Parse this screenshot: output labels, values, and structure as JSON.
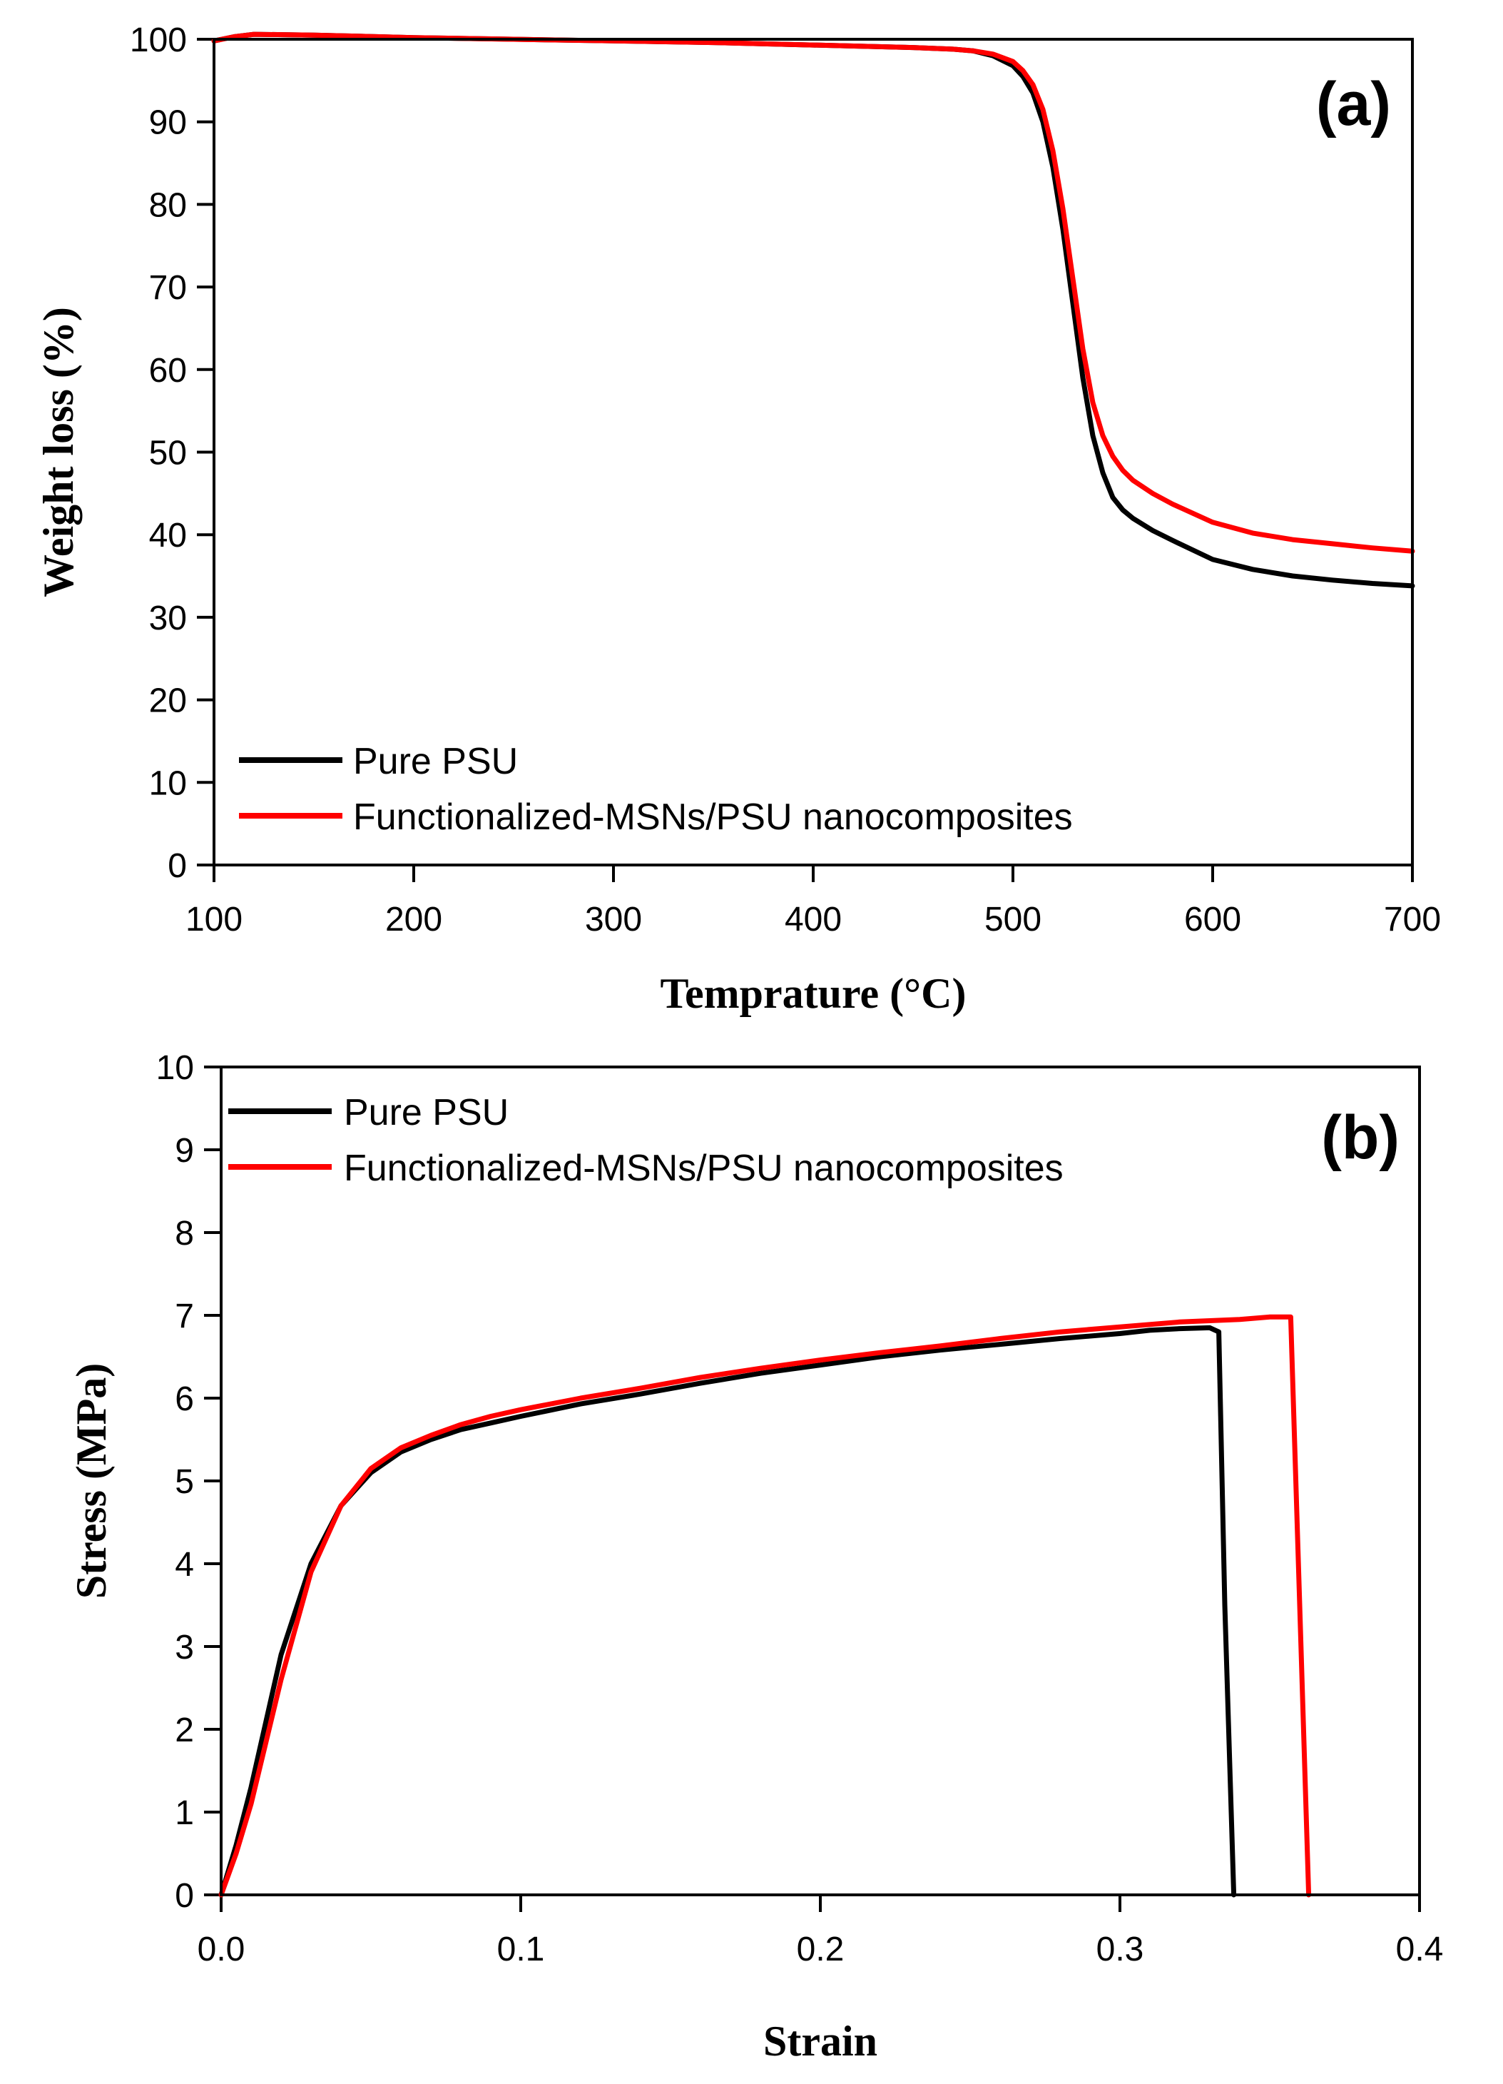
{
  "chart_data": [
    {
      "type": "line",
      "panel_label": "(a)",
      "xlabel": "Temprature (°C)",
      "ylabel": "Weight loss (%)",
      "xlim": [
        100,
        700
      ],
      "ylim": [
        0,
        100
      ],
      "xticks": [
        100,
        200,
        300,
        400,
        500,
        600,
        700
      ],
      "yticks": [
        0,
        10,
        20,
        30,
        40,
        50,
        60,
        70,
        80,
        90,
        100
      ],
      "grid": false,
      "legend_position": "bottom-left",
      "series": [
        {
          "name": "Pure PSU",
          "color": "#000000",
          "x": [
            100,
            110,
            120,
            150,
            200,
            250,
            300,
            350,
            400,
            450,
            470,
            480,
            490,
            500,
            505,
            510,
            515,
            520,
            525,
            530,
            535,
            540,
            545,
            550,
            555,
            560,
            570,
            580,
            600,
            620,
            640,
            660,
            680,
            700
          ],
          "y": [
            99.8,
            100.3,
            100.6,
            100.5,
            100.2,
            100.0,
            99.8,
            99.6,
            99.3,
            99.0,
            98.8,
            98.6,
            98.0,
            96.8,
            95.5,
            93.5,
            90.0,
            84.5,
            77.0,
            68.0,
            59.0,
            52.0,
            47.5,
            44.5,
            43.0,
            42.0,
            40.5,
            39.3,
            37.0,
            35.8,
            35.0,
            34.5,
            34.1,
            33.8
          ]
        },
        {
          "name": "Functionalized-MSNs/PSU nanocomposites",
          "color": "#ff0000",
          "x": [
            100,
            110,
            120,
            150,
            200,
            250,
            300,
            350,
            400,
            450,
            470,
            480,
            490,
            500,
            505,
            510,
            515,
            520,
            525,
            530,
            535,
            540,
            545,
            550,
            555,
            560,
            570,
            580,
            600,
            620,
            640,
            660,
            680,
            700
          ],
          "y": [
            99.8,
            100.3,
            100.6,
            100.5,
            100.2,
            100.0,
            99.8,
            99.6,
            99.3,
            99.0,
            98.8,
            98.6,
            98.2,
            97.3,
            96.2,
            94.5,
            91.5,
            86.5,
            79.5,
            71.0,
            62.5,
            56.0,
            52.0,
            49.5,
            47.8,
            46.6,
            45.0,
            43.7,
            41.5,
            40.2,
            39.4,
            38.9,
            38.4,
            38.0
          ]
        }
      ]
    },
    {
      "type": "line",
      "panel_label": "(b)",
      "xlabel": "Strain",
      "ylabel": "Stress (MPa)",
      "xlim": [
        0.0,
        0.4
      ],
      "ylim": [
        0,
        10
      ],
      "xticks": [
        "0.0",
        "0.1",
        "0.2",
        "0.3",
        "0.4"
      ],
      "yticks": [
        0,
        1,
        2,
        3,
        4,
        5,
        6,
        7,
        8,
        9,
        10
      ],
      "grid": false,
      "legend_position": "top-left",
      "series": [
        {
          "name": "Pure PSU",
          "color": "#000000",
          "x": [
            0.0,
            0.005,
            0.01,
            0.02,
            0.03,
            0.04,
            0.05,
            0.06,
            0.07,
            0.08,
            0.09,
            0.1,
            0.12,
            0.14,
            0.16,
            0.18,
            0.2,
            0.22,
            0.24,
            0.26,
            0.28,
            0.3,
            0.31,
            0.32,
            0.33,
            0.333,
            0.335,
            0.338
          ],
          "y": [
            0.0,
            0.6,
            1.3,
            2.9,
            4.0,
            4.7,
            5.1,
            5.35,
            5.5,
            5.62,
            5.7,
            5.78,
            5.93,
            6.05,
            6.18,
            6.3,
            6.4,
            6.5,
            6.58,
            6.65,
            6.72,
            6.78,
            6.82,
            6.84,
            6.85,
            6.8,
            3.5,
            0.0
          ]
        },
        {
          "name": "Functionalized-MSNs/PSU nanocomposites",
          "color": "#ff0000",
          "x": [
            0.0,
            0.005,
            0.01,
            0.02,
            0.03,
            0.04,
            0.05,
            0.06,
            0.07,
            0.08,
            0.09,
            0.1,
            0.12,
            0.14,
            0.16,
            0.18,
            0.2,
            0.22,
            0.24,
            0.26,
            0.28,
            0.3,
            0.32,
            0.34,
            0.35,
            0.357,
            0.36,
            0.363
          ],
          "y": [
            0.0,
            0.5,
            1.1,
            2.6,
            3.9,
            4.7,
            5.15,
            5.4,
            5.55,
            5.68,
            5.78,
            5.86,
            6.0,
            6.12,
            6.25,
            6.36,
            6.46,
            6.55,
            6.63,
            6.72,
            6.8,
            6.86,
            6.92,
            6.95,
            6.98,
            6.98,
            3.5,
            0.0
          ]
        }
      ]
    }
  ]
}
